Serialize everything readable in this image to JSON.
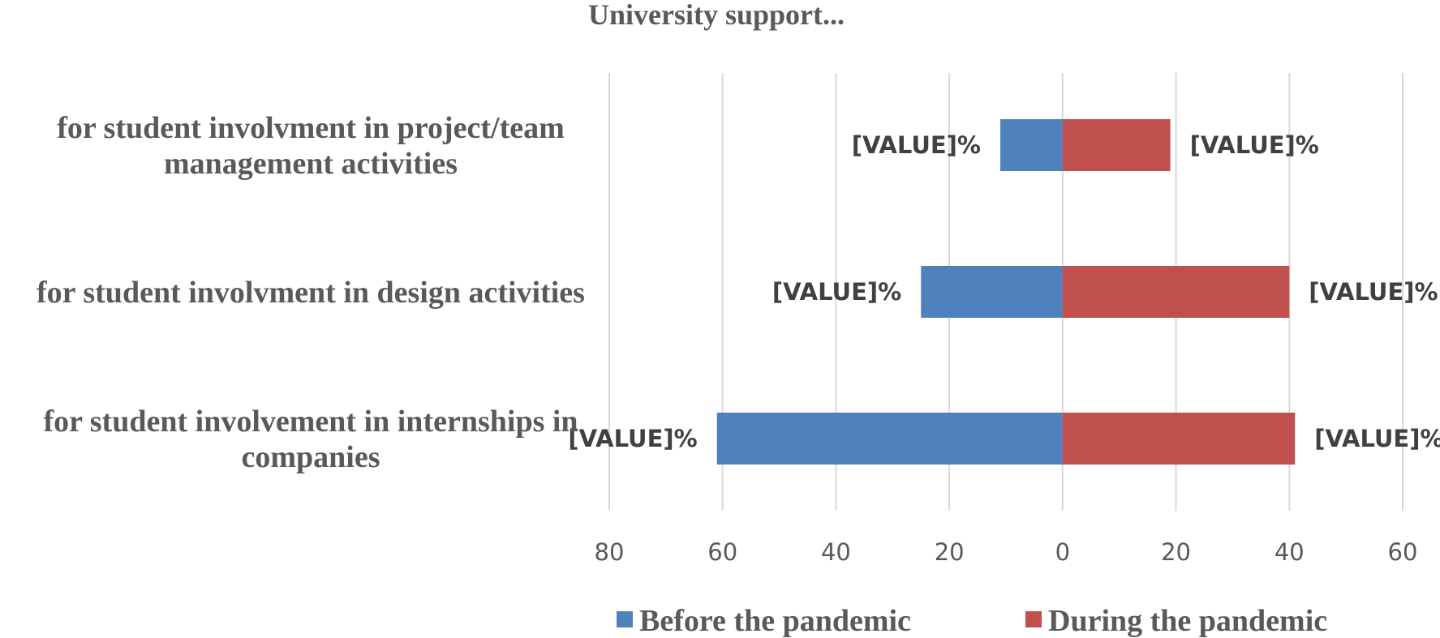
{
  "chart_data": {
    "type": "bar",
    "orientation": "horizontal-diverging",
    "title": "University support...",
    "categories": [
      [
        "for student involvment in project/team",
        "management activities"
      ],
      [
        "for student involvment in design activities"
      ],
      [
        "for student involvement in internships in",
        "companies"
      ]
    ],
    "series": [
      {
        "name": "Before the pandemic",
        "color": "#4F81BD",
        "values": [
          11,
          25,
          61
        ],
        "direction": "left",
        "data_label": "[VALUE]%"
      },
      {
        "name": "During the pandemic",
        "color": "#C0504D",
        "values": [
          19,
          40,
          41
        ],
        "direction": "right",
        "data_label": "[VALUE]%"
      }
    ],
    "xlim": [
      -80,
      60
    ],
    "x_ticks": [
      -80,
      -60,
      -40,
      -20,
      0,
      20,
      40,
      60
    ],
    "x_tick_labels": [
      "80",
      "60",
      "40",
      "20",
      "0",
      "20",
      "40",
      "60"
    ],
    "grid": true,
    "legend_position": "bottom"
  }
}
